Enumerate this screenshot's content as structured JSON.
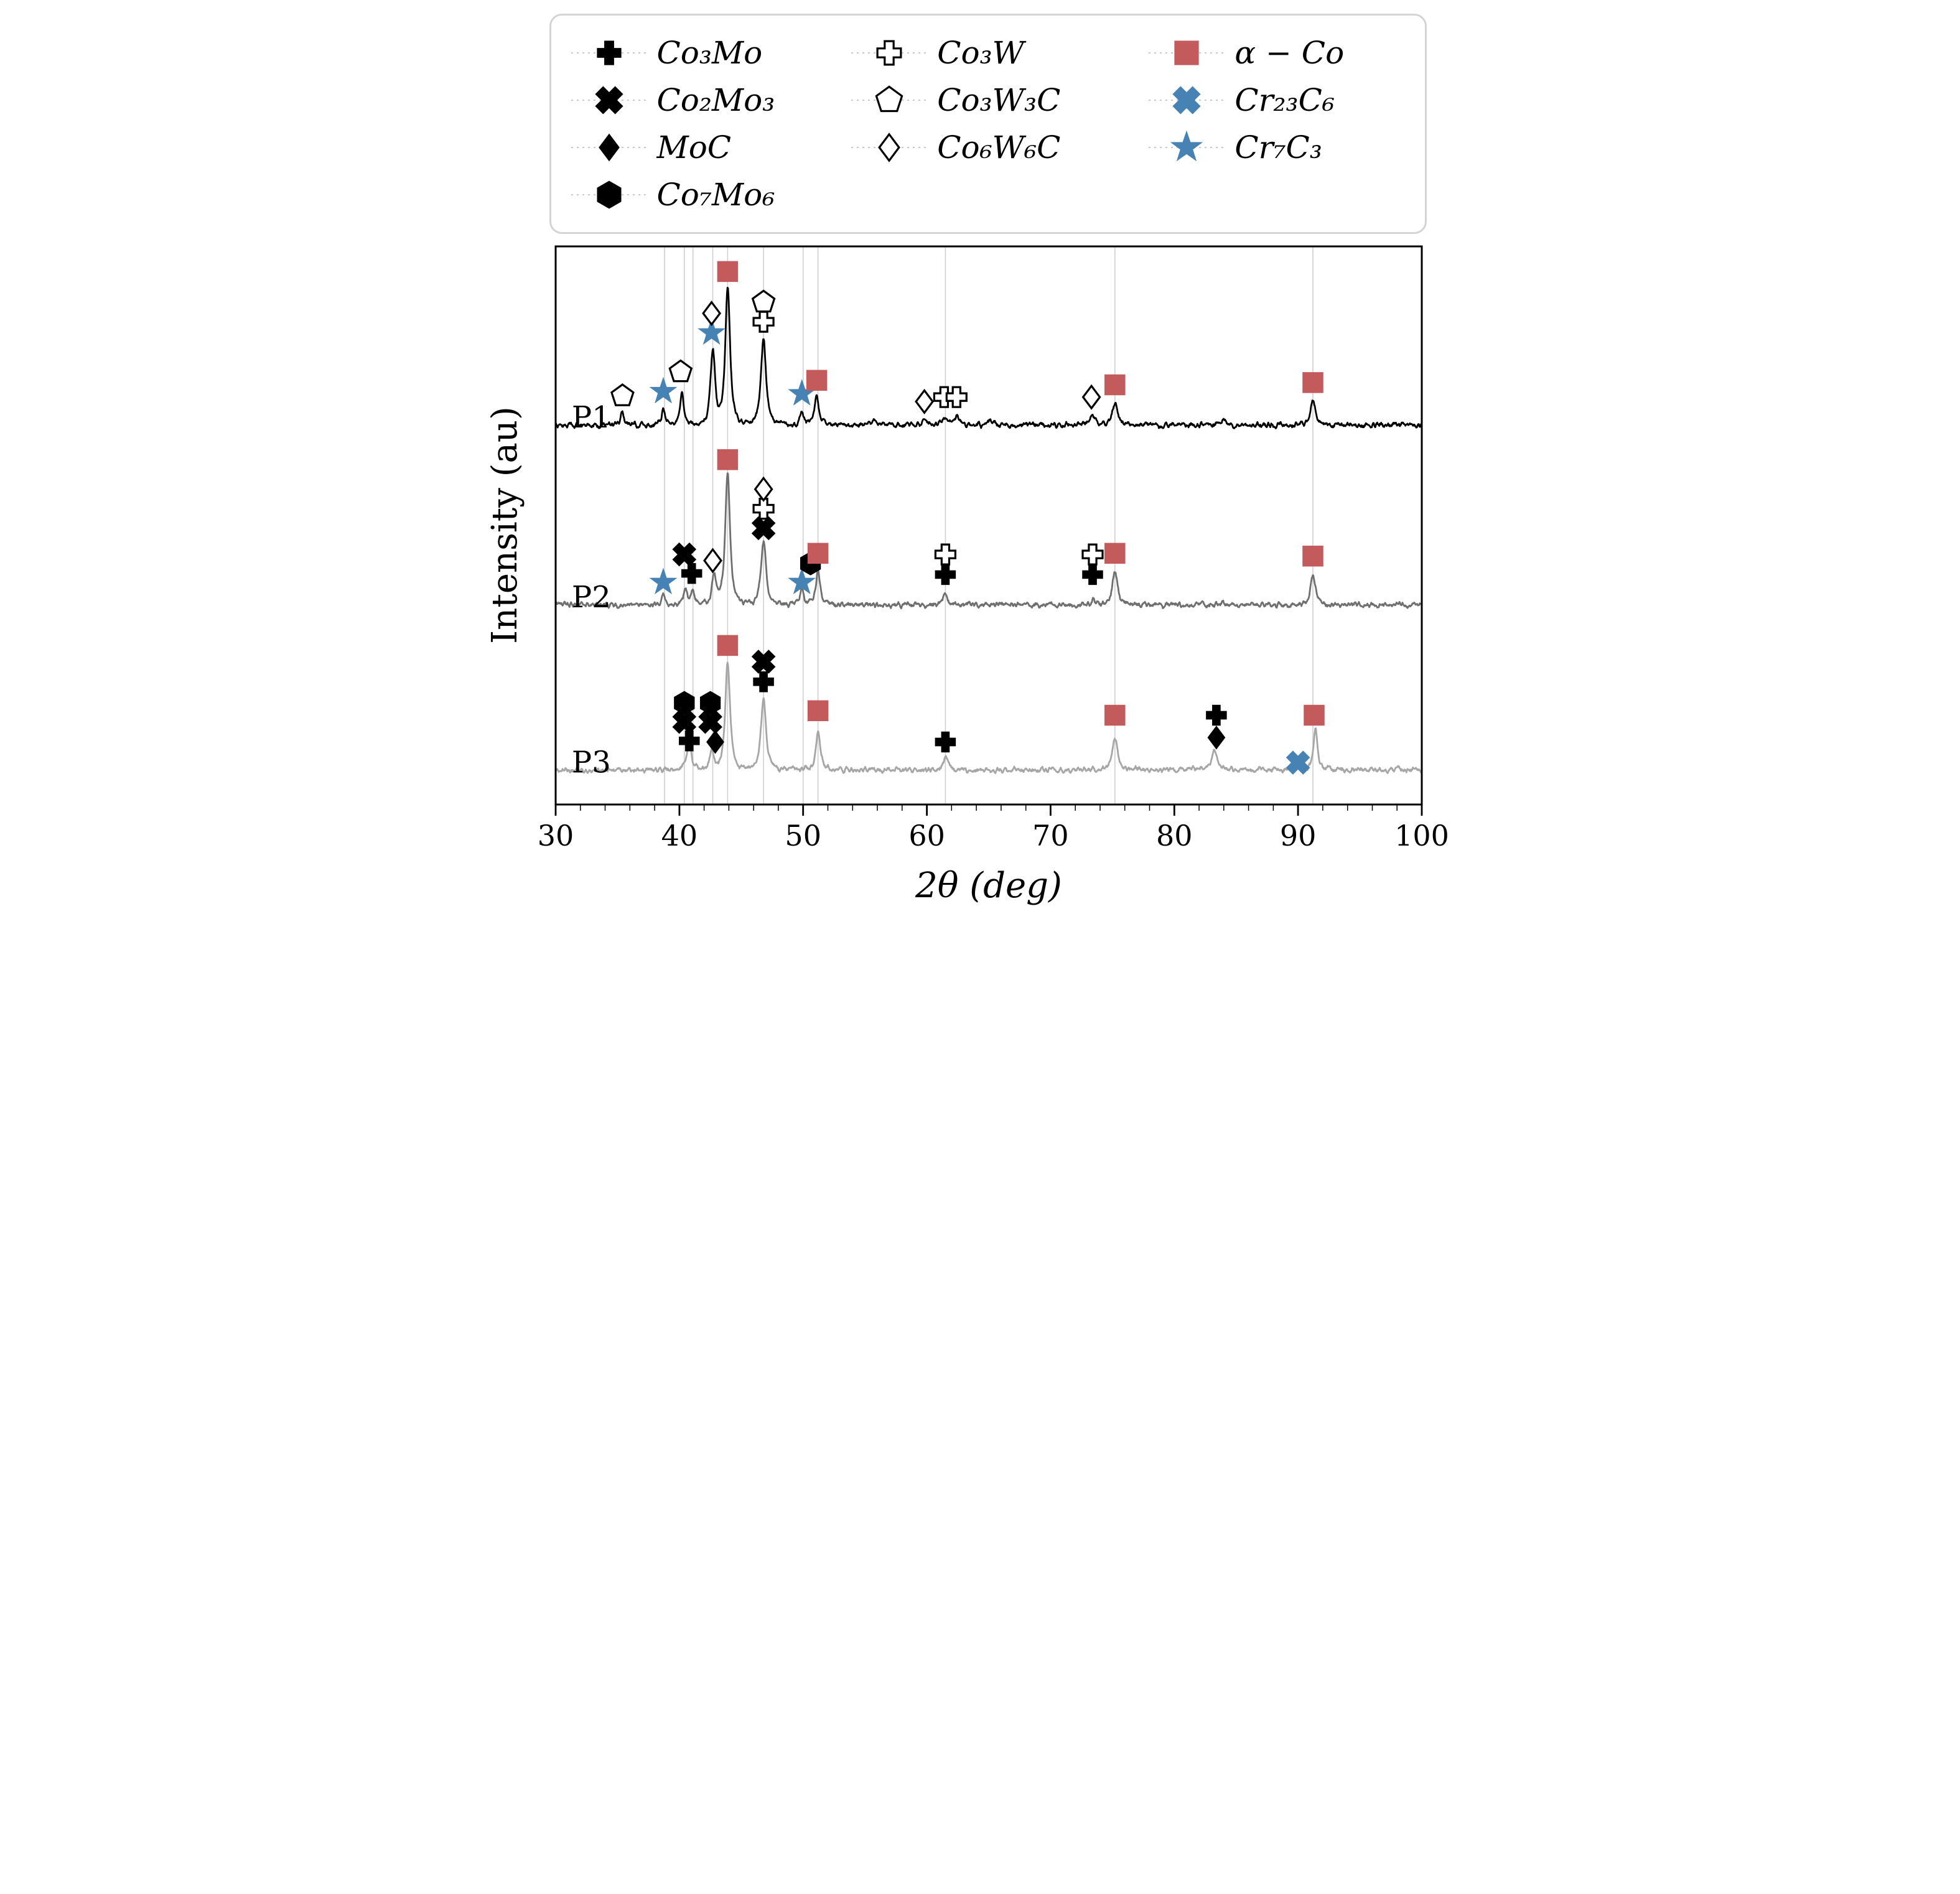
{
  "chart_data": {
    "type": "line",
    "title": "",
    "xlabel": "2θ (deg)",
    "ylabel": "Intensity (au)",
    "xlim": [
      30,
      100
    ],
    "xticks": [
      30,
      40,
      50,
      60,
      70,
      80,
      90,
      100
    ],
    "minor_tick_step": 2,
    "grid": true,
    "gridline_color": "#cfcfcf",
    "gridlines_x": [
      38.8,
      40.4,
      41.1,
      42.7,
      43.9,
      46.8,
      50.0,
      51.2,
      61.5,
      75.2,
      91.2
    ],
    "legend": {
      "position": "top",
      "columns": [
        [
          {
            "key": "Co3Mo",
            "label": "Co₃Mo",
            "marker": "plus",
            "variant": "filled",
            "color": "#000000"
          },
          {
            "key": "Co2Mo3",
            "label": "Co₂Mo₃",
            "marker": "x",
            "variant": "filled",
            "color": "#000000"
          },
          {
            "key": "MoC",
            "label": "MoC",
            "marker": "diamond",
            "variant": "filled",
            "color": "#000000"
          },
          {
            "key": "Co7Mo6",
            "label": "Co₇Mo₆",
            "marker": "hexagon",
            "variant": "filled",
            "color": "#000000"
          }
        ],
        [
          {
            "key": "Co3W",
            "label": "Co₃W",
            "marker": "plus",
            "variant": "open",
            "color": "#000000"
          },
          {
            "key": "Co3W3C",
            "label": "Co₃W₃C",
            "marker": "pentagon",
            "variant": "open",
            "color": "#000000"
          },
          {
            "key": "Co6W6C",
            "label": "Co₆W₆C",
            "marker": "diamond",
            "variant": "open",
            "color": "#000000"
          }
        ],
        [
          {
            "key": "alphaCo",
            "label": "α − Co",
            "marker": "square",
            "variant": "filled",
            "color": "#c35b5d"
          },
          {
            "key": "Cr23C6",
            "label": "Cr₂₃C₆",
            "marker": "x",
            "variant": "filled",
            "color": "#4682b4"
          },
          {
            "key": "Cr7C3",
            "label": "Cr₇C₃",
            "marker": "star",
            "variant": "filled",
            "color": "#4682b4"
          }
        ]
      ]
    },
    "series": [
      {
        "name": "P1",
        "color": "#000000",
        "baseline": 0.68,
        "label_x": 31.3,
        "peaks": [
          {
            "x": 35.4,
            "h": 0.022,
            "w": 0.22
          },
          {
            "x": 38.7,
            "h": 0.032,
            "w": 0.2
          },
          {
            "x": 40.2,
            "h": 0.058,
            "w": 0.22
          },
          {
            "x": 42.7,
            "h": 0.132,
            "w": 0.26
          },
          {
            "x": 43.9,
            "h": 0.245,
            "w": 0.28
          },
          {
            "x": 46.8,
            "h": 0.155,
            "w": 0.3
          },
          {
            "x": 49.9,
            "h": 0.024,
            "w": 0.2
          },
          {
            "x": 51.1,
            "h": 0.05,
            "w": 0.25
          },
          {
            "x": 55.8,
            "h": 0.008,
            "w": 0.25
          },
          {
            "x": 59.8,
            "h": 0.012,
            "w": 0.25
          },
          {
            "x": 61.4,
            "h": 0.017,
            "w": 0.25
          },
          {
            "x": 62.4,
            "h": 0.015,
            "w": 0.25
          },
          {
            "x": 65.0,
            "h": 0.007,
            "w": 0.25
          },
          {
            "x": 73.4,
            "h": 0.018,
            "w": 0.3
          },
          {
            "x": 75.2,
            "h": 0.04,
            "w": 0.3
          },
          {
            "x": 84.0,
            "h": 0.007,
            "w": 0.3
          },
          {
            "x": 91.2,
            "h": 0.046,
            "w": 0.28
          }
        ],
        "markers": [
          {
            "phase": "Co3W3C",
            "x": 35.4,
            "y": 0.732
          },
          {
            "phase": "Cr7C3",
            "x": 38.7,
            "y": 0.74
          },
          {
            "phase": "Co3W3C",
            "x": 40.1,
            "y": 0.775
          },
          {
            "phase": "Cr7C3",
            "x": 42.6,
            "y": 0.845
          },
          {
            "phase": "Co6W6C",
            "x": 42.6,
            "y": 0.88
          },
          {
            "phase": "alphaCo",
            "x": 43.9,
            "y": 0.955
          },
          {
            "phase": "Co3W",
            "x": 46.8,
            "y": 0.865
          },
          {
            "phase": "Co3W3C",
            "x": 46.8,
            "y": 0.9
          },
          {
            "phase": "Cr7C3",
            "x": 49.9,
            "y": 0.736
          },
          {
            "phase": "alphaCo",
            "x": 51.1,
            "y": 0.76
          },
          {
            "phase": "Co6W6C",
            "x": 59.8,
            "y": 0.722
          },
          {
            "phase": "Co3W",
            "x": 61.4,
            "y": 0.73
          },
          {
            "phase": "Co3W",
            "x": 62.4,
            "y": 0.73
          },
          {
            "phase": "Co6W6C",
            "x": 73.3,
            "y": 0.73
          },
          {
            "phase": "alphaCo",
            "x": 75.2,
            "y": 0.752
          },
          {
            "phase": "alphaCo",
            "x": 91.2,
            "y": 0.756
          }
        ]
      },
      {
        "name": "P2",
        "color": "#6f6f6f",
        "baseline": 0.358,
        "label_x": 31.3,
        "peaks": [
          {
            "x": 38.7,
            "h": 0.02,
            "w": 0.2
          },
          {
            "x": 40.5,
            "h": 0.03,
            "w": 0.2
          },
          {
            "x": 41.1,
            "h": 0.024,
            "w": 0.2
          },
          {
            "x": 42.8,
            "h": 0.052,
            "w": 0.24
          },
          {
            "x": 43.9,
            "h": 0.235,
            "w": 0.28
          },
          {
            "x": 46.8,
            "h": 0.112,
            "w": 0.3
          },
          {
            "x": 49.9,
            "h": 0.028,
            "w": 0.2
          },
          {
            "x": 51.2,
            "h": 0.06,
            "w": 0.26
          },
          {
            "x": 61.5,
            "h": 0.02,
            "w": 0.28
          },
          {
            "x": 73.5,
            "h": 0.01,
            "w": 0.25
          },
          {
            "x": 75.2,
            "h": 0.06,
            "w": 0.3
          },
          {
            "x": 91.2,
            "h": 0.055,
            "w": 0.28
          }
        ],
        "markers": [
          {
            "phase": "Cr7C3",
            "x": 38.7,
            "y": 0.398
          },
          {
            "phase": "Co2Mo3",
            "x": 40.4,
            "y": 0.448
          },
          {
            "phase": "Co3Mo",
            "x": 41.0,
            "y": 0.414
          },
          {
            "phase": "Co6W6C",
            "x": 42.7,
            "y": 0.437
          },
          {
            "phase": "alphaCo",
            "x": 43.9,
            "y": 0.618
          },
          {
            "phase": "Co2Mo3",
            "x": 46.8,
            "y": 0.495
          },
          {
            "phase": "Co3W",
            "x": 46.8,
            "y": 0.53
          },
          {
            "phase": "Co6W6C",
            "x": 46.8,
            "y": 0.565
          },
          {
            "phase": "Cr7C3",
            "x": 49.9,
            "y": 0.398
          },
          {
            "phase": "Co7Mo6",
            "x": 50.6,
            "y": 0.432
          },
          {
            "phase": "alphaCo",
            "x": 51.2,
            "y": 0.45
          },
          {
            "phase": "Co3W",
            "x": 61.5,
            "y": 0.448
          },
          {
            "phase": "Co3Mo",
            "x": 61.5,
            "y": 0.412
          },
          {
            "phase": "Co3W",
            "x": 73.4,
            "y": 0.448
          },
          {
            "phase": "Co3Mo",
            "x": 73.4,
            "y": 0.412
          },
          {
            "phase": "alphaCo",
            "x": 75.2,
            "y": 0.45
          },
          {
            "phase": "alphaCo",
            "x": 91.2,
            "y": 0.445
          }
        ]
      },
      {
        "name": "P3",
        "color": "#a6a6a6",
        "baseline": 0.062,
        "label_x": 31.3,
        "peaks": [
          {
            "x": 40.8,
            "h": 0.045,
            "w": 0.28
          },
          {
            "x": 42.6,
            "h": 0.032,
            "w": 0.22
          },
          {
            "x": 43.9,
            "h": 0.19,
            "w": 0.28
          },
          {
            "x": 46.8,
            "h": 0.128,
            "w": 0.3
          },
          {
            "x": 51.2,
            "h": 0.07,
            "w": 0.26
          },
          {
            "x": 61.5,
            "h": 0.024,
            "w": 0.28
          },
          {
            "x": 75.2,
            "h": 0.058,
            "w": 0.3
          },
          {
            "x": 83.2,
            "h": 0.032,
            "w": 0.35
          },
          {
            "x": 90.0,
            "h": 0.014,
            "w": 0.22
          },
          {
            "x": 91.4,
            "h": 0.072,
            "w": 0.26
          }
        ],
        "markers": [
          {
            "phase": "Co7Mo6",
            "x": 40.4,
            "y": 0.182
          },
          {
            "phase": "Co2Mo3",
            "x": 40.4,
            "y": 0.148
          },
          {
            "phase": "Co3Mo",
            "x": 40.8,
            "y": 0.114
          },
          {
            "phase": "Co7Mo6",
            "x": 42.5,
            "y": 0.182
          },
          {
            "phase": "Co2Mo3",
            "x": 42.5,
            "y": 0.148
          },
          {
            "phase": "MoC",
            "x": 42.9,
            "y": 0.112
          },
          {
            "phase": "alphaCo",
            "x": 43.9,
            "y": 0.285
          },
          {
            "phase": "Co2Mo3",
            "x": 46.8,
            "y": 0.256
          },
          {
            "phase": "Co3Mo",
            "x": 46.8,
            "y": 0.22
          },
          {
            "phase": "alphaCo",
            "x": 51.2,
            "y": 0.168
          },
          {
            "phase": "Co3Mo",
            "x": 61.5,
            "y": 0.112
          },
          {
            "phase": "alphaCo",
            "x": 75.2,
            "y": 0.16
          },
          {
            "phase": "Co3Mo",
            "x": 83.4,
            "y": 0.16
          },
          {
            "phase": "MoC",
            "x": 83.4,
            "y": 0.12
          },
          {
            "phase": "Cr23C6",
            "x": 90.0,
            "y": 0.075
          },
          {
            "phase": "alphaCo",
            "x": 91.3,
            "y": 0.16
          }
        ]
      }
    ]
  }
}
